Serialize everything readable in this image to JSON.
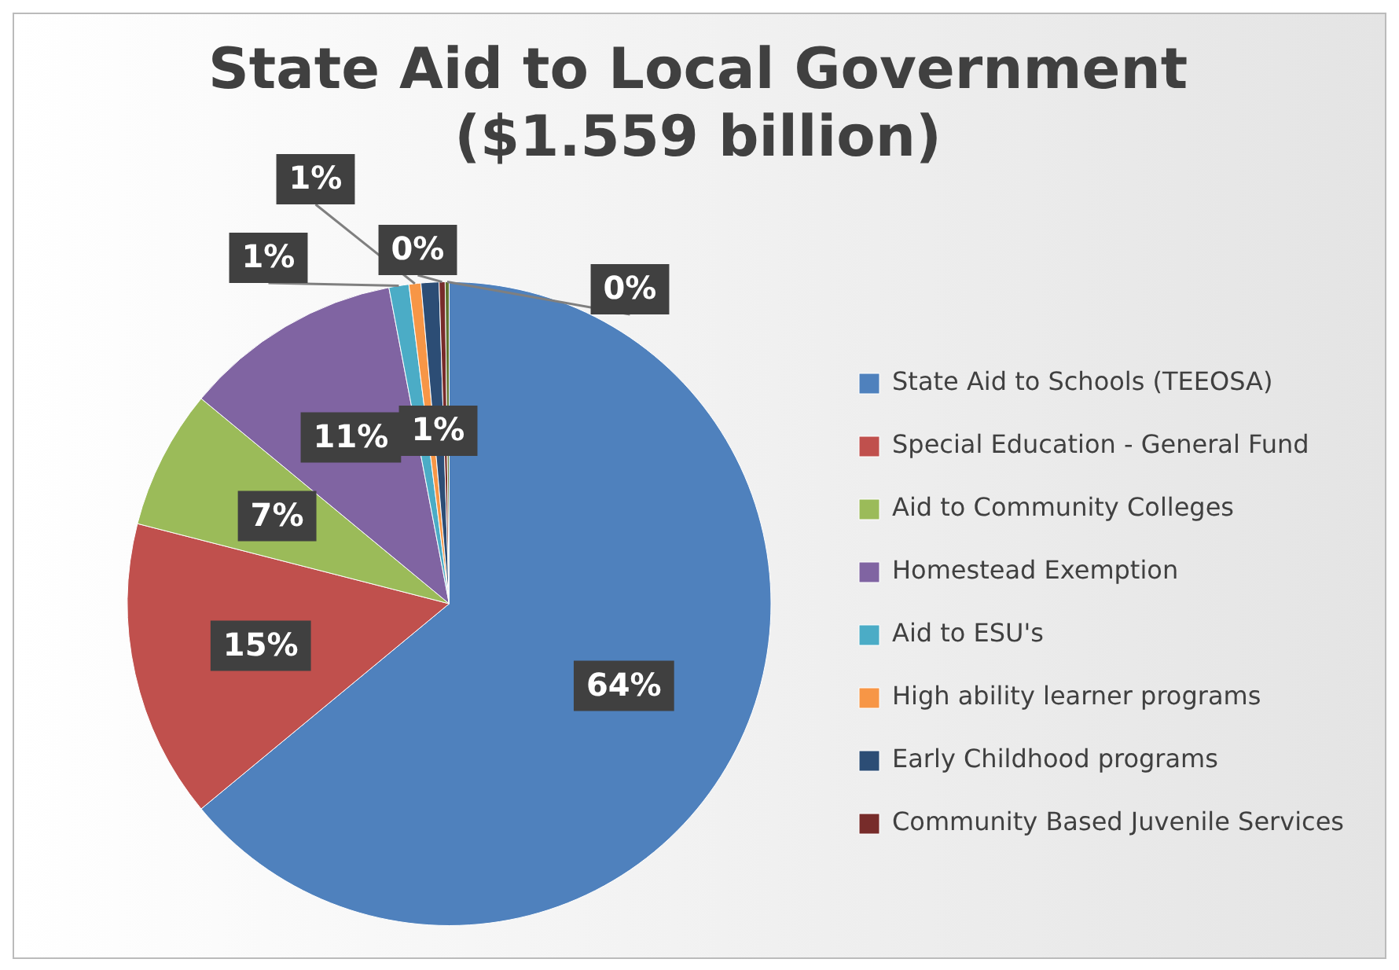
{
  "chart_data": {
    "type": "pie",
    "title": "State Aid to Local Government ($1.559 billion)",
    "categories": [
      "State Aid to Schools (TEEOSA)",
      "Special Education - General Fund",
      "Aid to Community Colleges",
      "Homestead Exemption",
      "Aid to ESU's",
      "High ability learner programs",
      "Early Childhood programs",
      "Community Based Juvenile Services",
      null
    ],
    "values": [
      64,
      15,
      7,
      11,
      1,
      0.6,
      0.9,
      0.3,
      0.2
    ],
    "colors": [
      "#4f81bd",
      "#c0504d",
      "#9bbb59",
      "#8064a2",
      "#4bacc6",
      "#f79646",
      "#2c4d75",
      "#772c2a",
      "#5f7530"
    ],
    "value_labels": [
      "64%",
      "15%",
      "7%",
      "11%",
      "1%",
      "1%",
      "1%",
      "0%",
      "0%"
    ],
    "legend": "right"
  }
}
